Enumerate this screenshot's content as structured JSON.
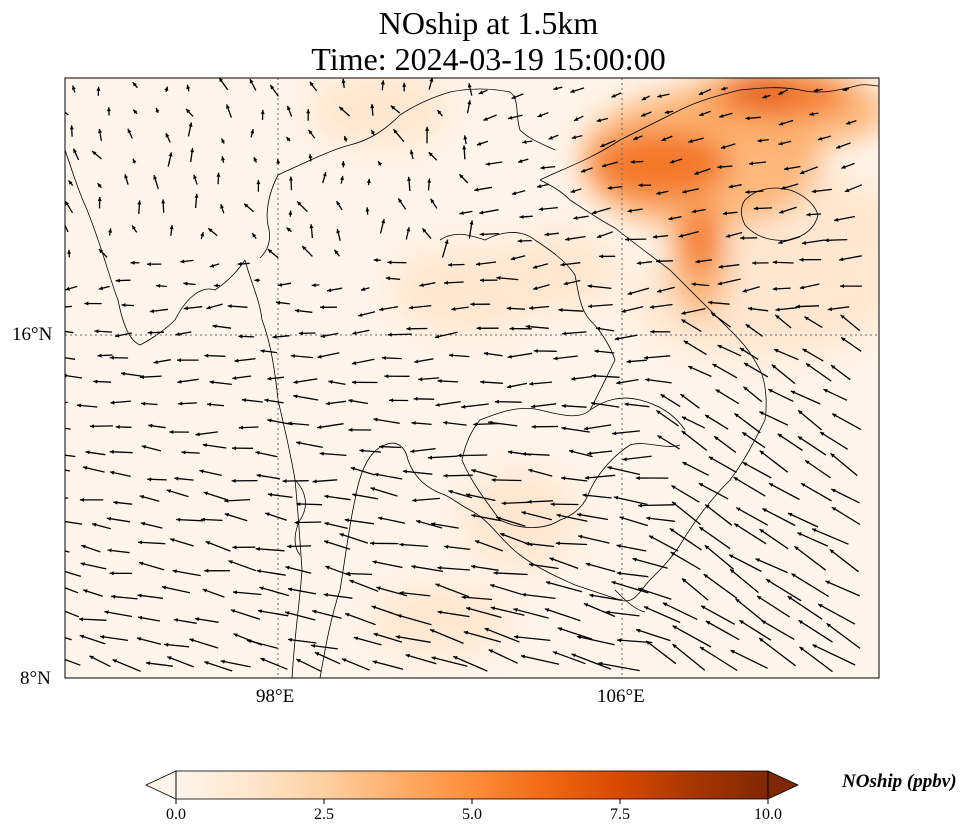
{
  "figure": {
    "title_line1": "NOship at 1.5km",
    "title_line2": "Time: 2024-03-19 15:00:00"
  },
  "map": {
    "lat_labels": [
      "16°N",
      "8°N"
    ],
    "lon_labels": [
      "98°E",
      "106°E"
    ],
    "field_colors": {
      "low": "#fff5eb",
      "light": "#fee6ce",
      "mid": "#fdae6b",
      "high": "#f16913",
      "peak": "#d94801"
    },
    "arrow_color": "#000000",
    "coastline_color": "#000000"
  },
  "colorbar": {
    "label": "NOship (ppbv)",
    "ticks": [
      "0.0",
      "2.5",
      "5.0",
      "7.5",
      "10.0"
    ],
    "colors": [
      "#fff5eb",
      "#fee6ce",
      "#fdd0a2",
      "#fdae6b",
      "#fd8d3c",
      "#f16913",
      "#d94801",
      "#a63603",
      "#7f2704"
    ]
  }
}
